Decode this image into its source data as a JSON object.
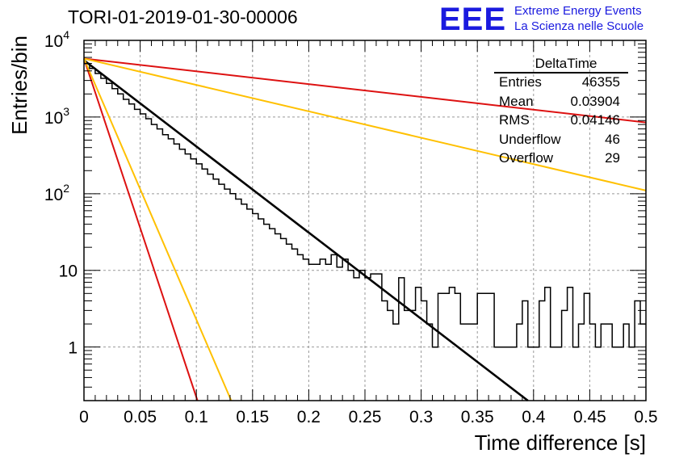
{
  "header": {
    "title": "TORI-01-2019-01-30-00006",
    "logo_text": "EEE",
    "logo_line1": "Extreme Energy Events",
    "logo_line2": "La Scienza nelle Scuole"
  },
  "stats_box": {
    "title": "DeltaTime",
    "rows": [
      {
        "label": "Entries",
        "value": "46355"
      },
      {
        "label": "Mean",
        "value": "0.03904"
      },
      {
        "label": "RMS",
        "value": "0.04146"
      },
      {
        "label": "Underflow",
        "value": "46"
      },
      {
        "label": "Overflow",
        "value": "29"
      }
    ]
  },
  "chart_data": {
    "type": "line",
    "xlabel": "Time difference [s]",
    "ylabel": "Entries/bin",
    "xlim": [
      0,
      0.5
    ],
    "ylim": [
      0.2,
      10000
    ],
    "log_y": true,
    "grid": true,
    "x_ticks": [
      "0",
      "0.05",
      "0.1",
      "0.15",
      "0.2",
      "0.25",
      "0.3",
      "0.35",
      "0.4",
      "0.45",
      "0.5"
    ],
    "y_ticks": [
      {
        "value": 1,
        "label": "1",
        "exp": ""
      },
      {
        "value": 10,
        "label": "10",
        "exp": ""
      },
      {
        "value": 100,
        "label": "10",
        "exp": "2"
      },
      {
        "value": 1000,
        "label": "10",
        "exp": "3"
      },
      {
        "value": 10000,
        "label": "10",
        "exp": "4"
      }
    ],
    "histogram": {
      "name": "DeltaTime",
      "bin_width": 0.005,
      "color": "#000000",
      "counts": [
        5000,
        4300,
        3700,
        3200,
        2750,
        2350,
        2000,
        1700,
        1480,
        1260,
        1100,
        950,
        800,
        700,
        590,
        520,
        445,
        380,
        330,
        285,
        245,
        210,
        180,
        155,
        133,
        115,
        100,
        85,
        73,
        63,
        55,
        47,
        40,
        35,
        30,
        26,
        22,
        19,
        16,
        14,
        12,
        12,
        14,
        12,
        16,
        11,
        14,
        10,
        8,
        10,
        8,
        9,
        9,
        4,
        3,
        2,
        8,
        3,
        3,
        6,
        4,
        2,
        1,
        5,
        5,
        6,
        5,
        2,
        2,
        2,
        5,
        5,
        5,
        1,
        1,
        1,
        1,
        2,
        4,
        1,
        1,
        4,
        6,
        1,
        1,
        3,
        6,
        1,
        2,
        5,
        2,
        1,
        2,
        2,
        1,
        1,
        2,
        1,
        4,
        2
      ]
    },
    "fits": [
      {
        "name": "fit",
        "color": "#000000",
        "x": [
          0,
          0.395
        ],
        "y": [
          5500,
          0.2
        ]
      },
      {
        "name": "red-slow",
        "color": "#dd1111",
        "x": [
          0,
          0.5
        ],
        "y": [
          5800,
          850
        ]
      },
      {
        "name": "orange-slow",
        "color": "#ffc000",
        "x": [
          0,
          0.5
        ],
        "y": [
          5800,
          110
        ]
      },
      {
        "name": "red-fast",
        "color": "#dd1111",
        "x": [
          0,
          0.101
        ],
        "y": [
          5800,
          0.2
        ]
      },
      {
        "name": "orange-fast",
        "color": "#ffc000",
        "x": [
          0,
          0.131
        ],
        "y": [
          5800,
          0.2
        ]
      }
    ]
  }
}
